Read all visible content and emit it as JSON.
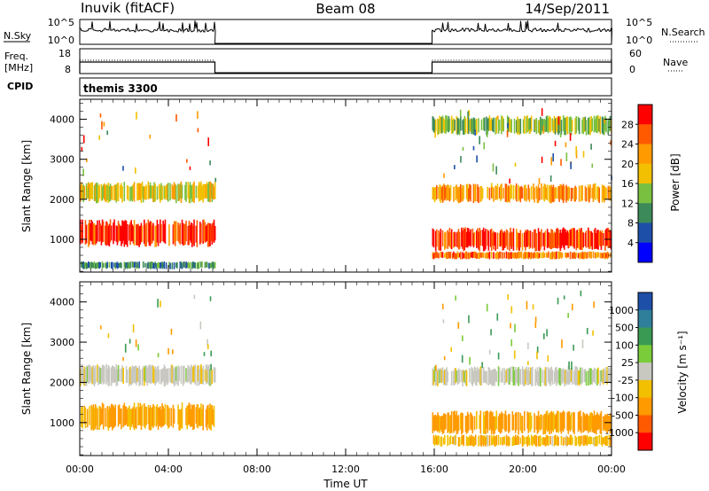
{
  "header": {
    "station": "Inuvik (fitACF)",
    "beam": "Beam 08",
    "date": "14/Sep/2011"
  },
  "strips": {
    "nsky_label": "N.Sky",
    "nsky_ticks": [
      "10^5",
      "10^0"
    ],
    "nsearch_label": "N.Search",
    "nsearch_ticks": [
      "10^5",
      "10^0"
    ],
    "freq_label_1": "Freq.",
    "freq_label_2": "[MHz]",
    "freq_ticks": [
      "18",
      "8"
    ],
    "nave_label": "Nave",
    "nave_ticks": [
      "60",
      "0"
    ],
    "cpid_label": "CPID",
    "cpid_value": "themis 3300"
  },
  "chart_data": [
    {
      "type": "heatmap",
      "quantity": "Power",
      "ylabel": "Slant Range [km]",
      "colorbar_label": "Power [dB]",
      "colorbar_ticks": [
        "28",
        "24",
        "20",
        "16",
        "12",
        "8",
        "4"
      ],
      "colorbar_colors": [
        "#ff0000",
        "#ff5a00",
        "#ff9a00",
        "#f2c000",
        "#7ac040",
        "#3c8a5a",
        "#1d4fa8",
        "#0000ff"
      ],
      "yticks": [
        "4000",
        "3000",
        "2000",
        "1000"
      ],
      "ylim": [
        180,
        4500
      ],
      "xlim_hours": [
        0,
        24
      ],
      "data_gap_hours": [
        6.1,
        15.9
      ],
      "echo_bands": [
        {
          "t_start": 0,
          "t_end": 6.1,
          "range_km": [
            1900,
            2450
          ],
          "power_db": 16
        },
        {
          "t_start": 0,
          "t_end": 6.1,
          "range_km": [
            800,
            1500
          ],
          "power_db": 26
        },
        {
          "t_start": 0,
          "t_end": 6.1,
          "range_km": [
            250,
            450
          ],
          "power_db": 8
        },
        {
          "t_start": 15.9,
          "t_end": 24,
          "range_km": [
            1900,
            2400
          ],
          "power_db": 20
        },
        {
          "t_start": 15.9,
          "t_end": 24,
          "range_km": [
            700,
            1300
          ],
          "power_db": 26
        },
        {
          "t_start": 15.9,
          "t_end": 24,
          "range_km": [
            500,
            700
          ],
          "power_db": 22
        },
        {
          "t_start": 15.9,
          "t_end": 24,
          "range_km": [
            3600,
            4100
          ],
          "power_db": 12
        }
      ]
    },
    {
      "type": "heatmap",
      "quantity": "Velocity",
      "ylabel": "Slant Range [km]",
      "xlabel": "Time UT",
      "colorbar_label": "Velocity [m s⁻¹]",
      "colorbar_ticks": [
        "1000",
        "500",
        "100",
        "25",
        "-25",
        "-100",
        "-500",
        "-1000"
      ],
      "colorbar_colors": [
        "#1d4fa8",
        "#2f7f9a",
        "#3a9a54",
        "#7acc3a",
        "#c8c8c0",
        "#f2c000",
        "#ff9a00",
        "#ff5a00",
        "#ff0000"
      ],
      "yticks": [
        "4000",
        "3000",
        "2000",
        "1000"
      ],
      "xticks": [
        "00:00",
        "04:00",
        "08:00",
        "12:00",
        "16:00",
        "20:00",
        "00:00"
      ],
      "ylim": [
        180,
        4500
      ],
      "xlim_hours": [
        0,
        24
      ],
      "data_gap_hours": [
        6.1,
        15.9
      ],
      "echo_bands": [
        {
          "t_start": 0,
          "t_end": 6.1,
          "range_km": [
            1900,
            2450
          ],
          "velocity_ms": 0
        },
        {
          "t_start": 0,
          "t_end": 6.1,
          "range_km": [
            800,
            1500
          ],
          "velocity_ms": -120
        },
        {
          "t_start": 15.9,
          "t_end": 24,
          "range_km": [
            1900,
            2400
          ],
          "velocity_ms": 0
        },
        {
          "t_start": 15.9,
          "t_end": 24,
          "range_km": [
            700,
            1300
          ],
          "velocity_ms": -150
        },
        {
          "t_start": 15.9,
          "t_end": 24,
          "range_km": [
            400,
            700
          ],
          "velocity_ms": -80
        }
      ]
    }
  ]
}
